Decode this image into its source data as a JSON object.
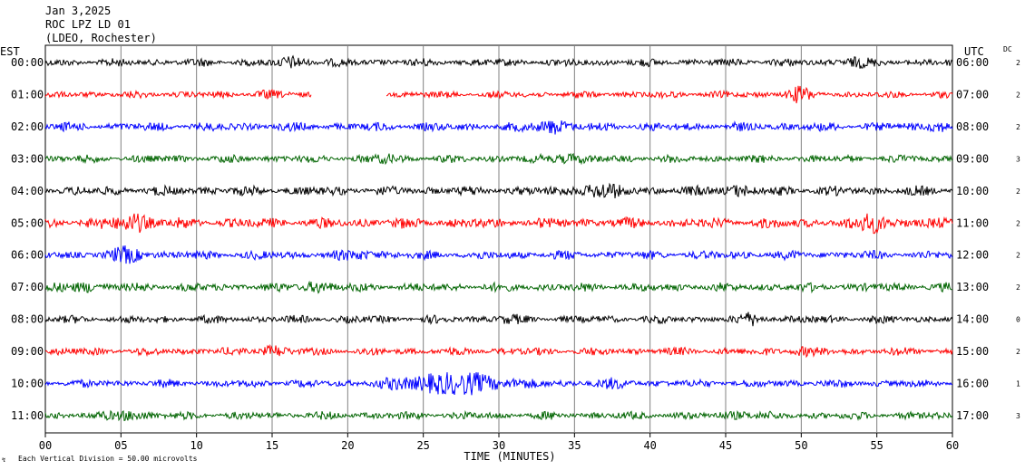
{
  "header": {
    "date": "Jan 3,2025",
    "station": "ROC LPZ LD 01",
    "network": "(LDEO, Rochester)"
  },
  "left_axis_label": "EST",
  "right_axis_label": "UTC",
  "dc_label": "DC",
  "footer_note": "Each Vertical Division = 50.00 microvolts",
  "chart_data": {
    "type": "line",
    "xlabel": "TIME (MINUTES)",
    "xlim": [
      0,
      60
    ],
    "x_ticks": [
      "00",
      "05",
      "10",
      "15",
      "20",
      "25",
      "30",
      "35",
      "40",
      "45",
      "50",
      "55",
      "60"
    ],
    "colors": [
      "#000000",
      "#ff0000",
      "#0000ff",
      "#006400"
    ],
    "grid": true,
    "series": [
      {
        "name": "00:00",
        "utc": "06:00",
        "dc": "2",
        "color": "#000000",
        "gaps": [],
        "bursts": [
          [
            16.5,
            1.0,
            1.6
          ],
          [
            53.5,
            0.8,
            1.5
          ]
        ],
        "amp": 0.45
      },
      {
        "name": "01:00",
        "utc": "07:00",
        "dc": "2",
        "color": "#ff0000",
        "gaps": [
          [
            17.6,
            22.5
          ]
        ],
        "bursts": [
          [
            49.8,
            0.8,
            2.0
          ],
          [
            14.5,
            0.8,
            1.3
          ]
        ],
        "amp": 0.4
      },
      {
        "name": "02:00",
        "utc": "08:00",
        "dc": "2",
        "color": "#0000ff",
        "gaps": [],
        "bursts": [
          [
            33.5,
            1.0,
            1.8
          ],
          [
            59.0,
            0.6,
            1.7
          ]
        ],
        "amp": 0.5
      },
      {
        "name": "03:00",
        "utc": "09:00",
        "dc": "3",
        "color": "#006400",
        "gaps": [],
        "bursts": [
          [
            34.5,
            1.0,
            1.6
          ],
          [
            22.5,
            0.8,
            1.4
          ]
        ],
        "amp": 0.45
      },
      {
        "name": "04:00",
        "utc": "10:00",
        "dc": "2",
        "color": "#000000",
        "gaps": [],
        "bursts": [
          [
            36.5,
            1.5,
            1.6
          ],
          [
            45.5,
            1.0,
            1.4
          ]
        ],
        "amp": 0.55
      },
      {
        "name": "05:00",
        "utc": "11:00",
        "dc": "2",
        "color": "#ff0000",
        "gaps": [],
        "bursts": [
          [
            5.8,
            1.2,
            1.8
          ],
          [
            54.8,
            0.8,
            2.0
          ]
        ],
        "amp": 0.6
      },
      {
        "name": "06:00",
        "utc": "12:00",
        "dc": "2",
        "color": "#0000ff",
        "gaps": [],
        "bursts": [
          [
            5.5,
            1.0,
            1.8
          ],
          [
            21.0,
            1.0,
            1.4
          ]
        ],
        "amp": 0.5
      },
      {
        "name": "07:00",
        "utc": "13:00",
        "dc": "2",
        "color": "#006400",
        "gaps": [],
        "bursts": [
          [
            2.5,
            1.0,
            1.5
          ],
          [
            18.0,
            1.0,
            1.5
          ]
        ],
        "amp": 0.5
      },
      {
        "name": "08:00",
        "utc": "14:00",
        "dc": "0",
        "color": "#000000",
        "gaps": [],
        "bursts": [
          [
            46.8,
            0.8,
            1.6
          ],
          [
            30.5,
            0.8,
            1.3
          ]
        ],
        "amp": 0.45
      },
      {
        "name": "09:00",
        "utc": "15:00",
        "dc": "2",
        "color": "#ff0000",
        "gaps": [],
        "bursts": [
          [
            15.0,
            0.8,
            1.6
          ],
          [
            50.0,
            0.8,
            1.4
          ]
        ],
        "amp": 0.45
      },
      {
        "name": "10:00",
        "utc": "16:00",
        "dc": "1",
        "color": "#0000ff",
        "gaps": [],
        "bursts": [
          [
            27.0,
            3.5,
            2.4
          ],
          [
            37.5,
            1.5,
            1.3
          ]
        ],
        "amp": 0.45
      },
      {
        "name": "11:00",
        "utc": "17:00",
        "dc": "3",
        "color": "#006400",
        "gaps": [],
        "bursts": [
          [
            5.5,
            1.0,
            1.6
          ],
          [
            46.0,
            1.0,
            1.4
          ]
        ],
        "amp": 0.45
      }
    ]
  }
}
